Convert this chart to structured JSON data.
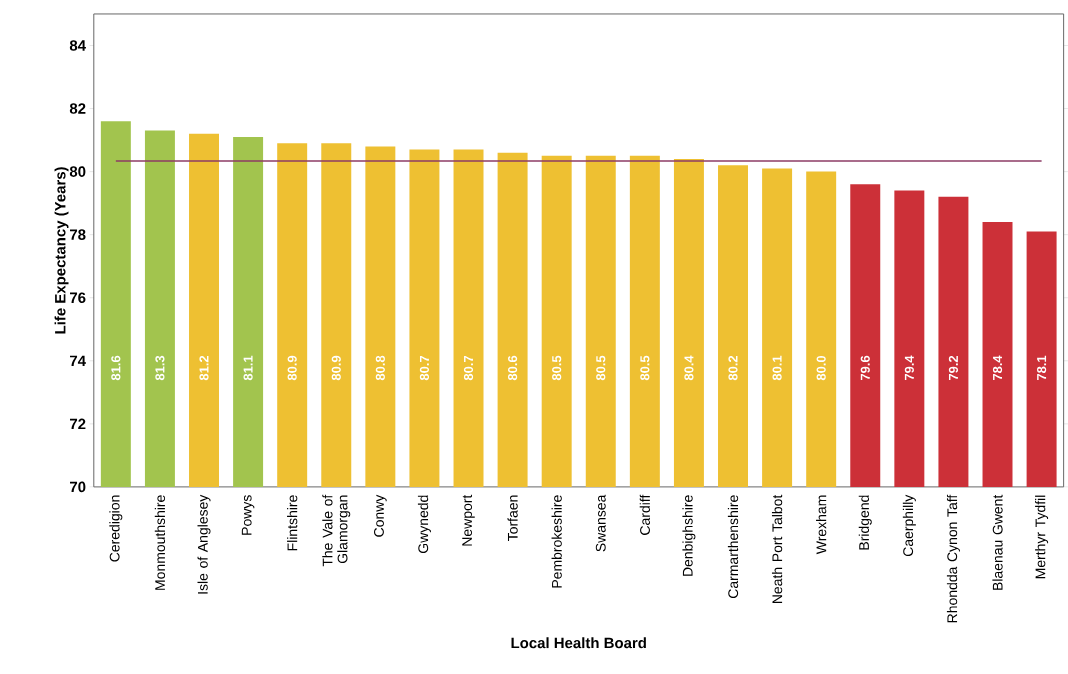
{
  "chart_data": {
    "type": "bar",
    "xlabel": "Local Health Board",
    "ylabel": "Life Expectancy (Years)",
    "categories": [
      "Ceredigion",
      "Monmouthshire",
      "Isle of Anglesey",
      "Powys",
      "Flintshire",
      "The Vale of Glamorgan",
      "Conwy",
      "Gwynedd",
      "Newport",
      "Torfaen",
      "Pembrokeshire",
      "Swansea",
      "Cardiff",
      "Denbighshire",
      "Carmarthenshire",
      "Neath Port Talbot",
      "Wrexham",
      "Bridgend",
      "Caerphilly",
      "Rhondda Cynon Taff",
      "Blaenau Gwent",
      "Merthyr Tydfil"
    ],
    "values": [
      81.6,
      81.3,
      81.2,
      81.1,
      80.9,
      80.9,
      80.8,
      80.7,
      80.7,
      80.6,
      80.5,
      80.5,
      80.5,
      80.4,
      80.2,
      80.1,
      80.0,
      79.6,
      79.4,
      79.2,
      78.4,
      78.1
    ],
    "colors": [
      "#a2c44e",
      "#a2c44e",
      "#eec032",
      "#a2c44e",
      "#eec032",
      "#eec032",
      "#eec032",
      "#eec032",
      "#eec032",
      "#eec032",
      "#eec032",
      "#eec032",
      "#eec032",
      "#eec032",
      "#eec032",
      "#eec032",
      "#eec032",
      "#cc3038",
      "#cc3038",
      "#cc3038",
      "#cc3038",
      "#cc3038"
    ],
    "ylim": [
      70,
      85
    ],
    "yticks": [
      70,
      72,
      74,
      76,
      78,
      80,
      82,
      84
    ],
    "ref_lines": [
      {
        "axis": "y",
        "value": 80.34,
        "color": "#8c3b65"
      }
    ],
    "value_labels": [
      "81.6",
      "81.3",
      "81.2",
      "81.1",
      "80.9",
      "80.9",
      "80.8",
      "80.7",
      "80.7",
      "80.6",
      "80.5",
      "80.5",
      "80.5",
      "80.4",
      "80.2",
      "80.1",
      "80.0",
      "79.6",
      "79.4",
      "79.2",
      "78.4",
      "78.1"
    ],
    "grid": false
  }
}
